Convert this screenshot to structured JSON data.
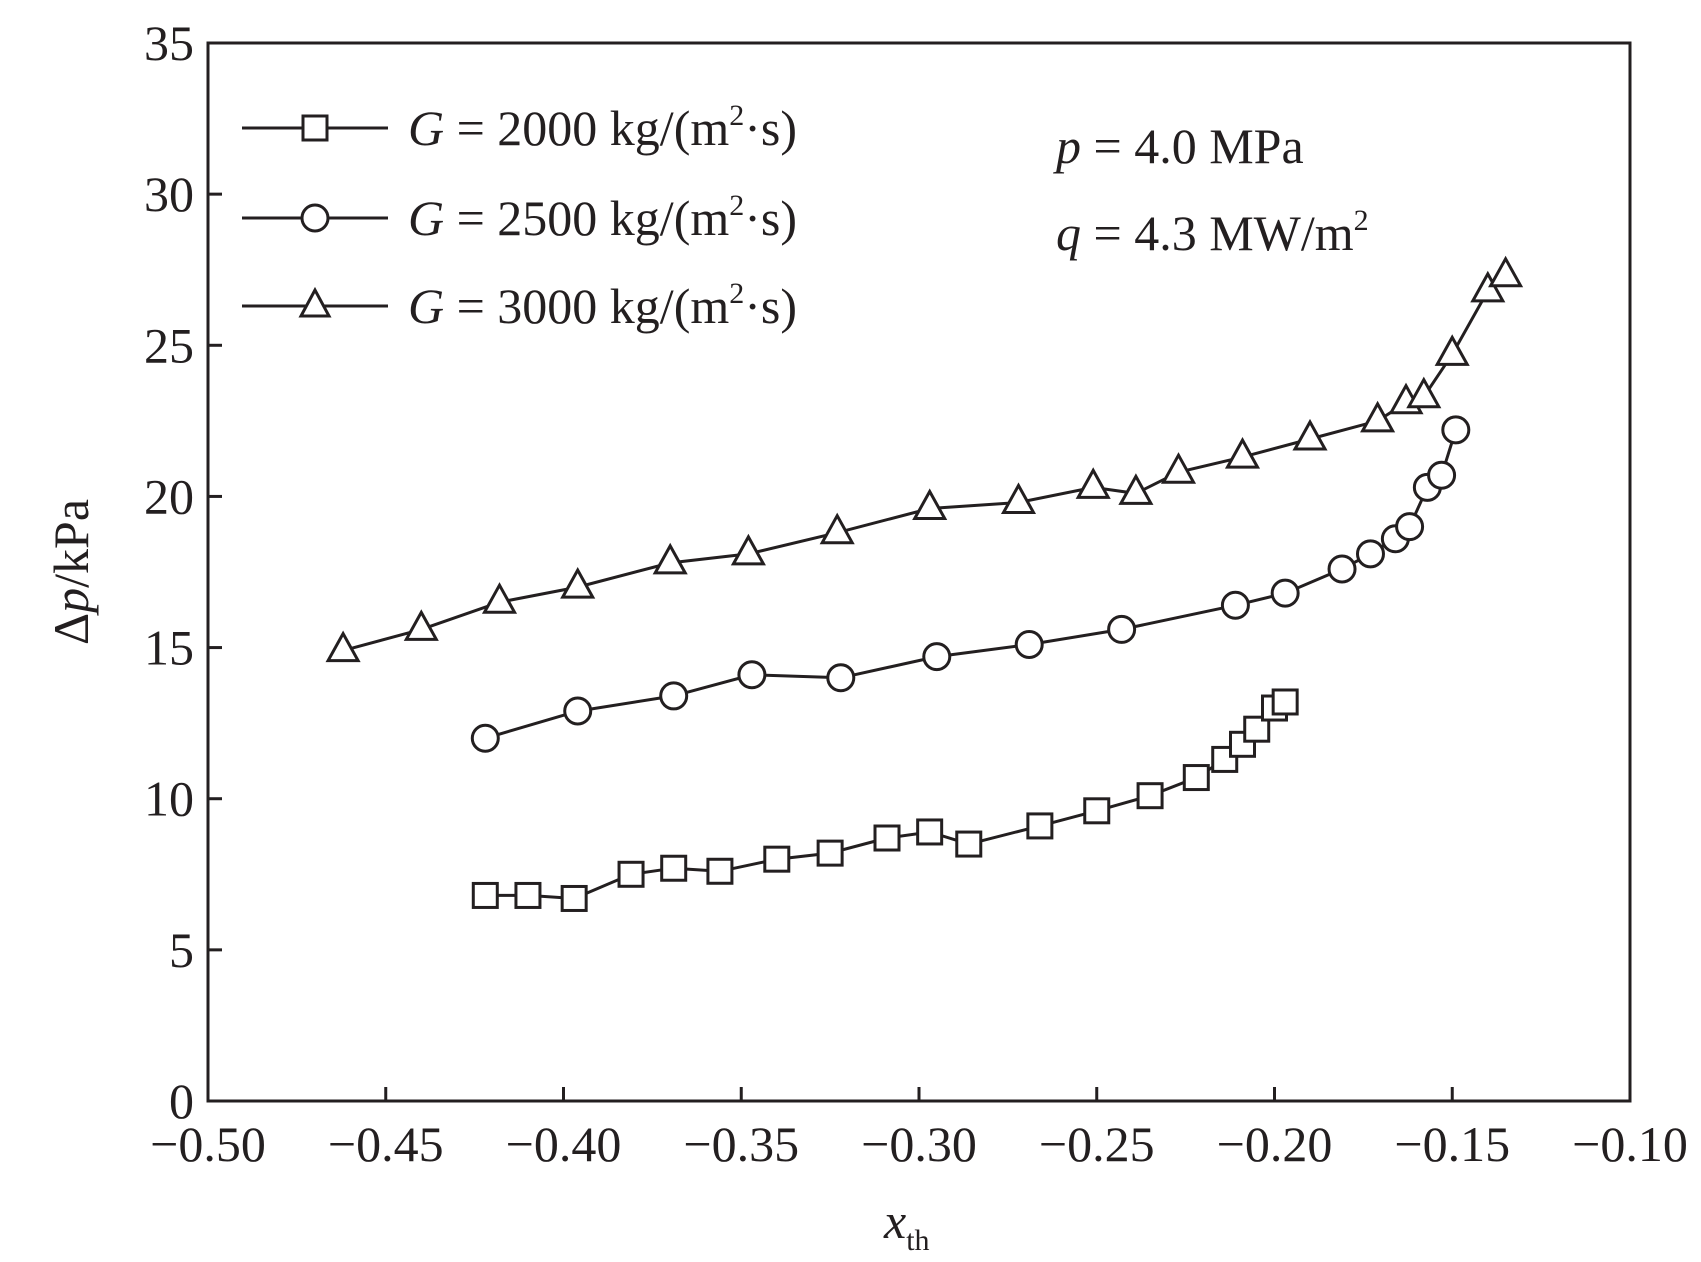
{
  "chart_data": {
    "type": "line",
    "xlabel": "x",
    "xlabel_sub": "th",
    "ylabel": "Δp/kPa",
    "ylabel_parts": [
      "Δ",
      "p",
      "/kPa"
    ],
    "xlim": [
      -0.5,
      -0.1
    ],
    "ylim": [
      0,
      35
    ],
    "xticks": [
      -0.5,
      -0.45,
      -0.4,
      -0.35,
      -0.3,
      -0.25,
      -0.2,
      -0.15,
      -0.1
    ],
    "xtick_labels": [
      "−0.50",
      "−0.45",
      "−0.40",
      "−0.35",
      "−0.30",
      "−0.25",
      "−0.20",
      "−0.15",
      "−0.10"
    ],
    "yticks": [
      0,
      5,
      10,
      15,
      20,
      25,
      30,
      35
    ],
    "ytick_labels": [
      "0",
      "5",
      "10",
      "15",
      "20",
      "25",
      "30",
      "35"
    ],
    "grid": false,
    "legend_position": "top-left",
    "series": [
      {
        "name": "G = 2000 kg/(m²·s)",
        "label_var": "G",
        "label_value": " = 2000 kg/(m",
        "label_sup": "2",
        "label_end": "·s)",
        "marker": "square",
        "x": [
          -0.422,
          -0.41,
          -0.397,
          -0.381,
          -0.369,
          -0.356,
          -0.34,
          -0.325,
          -0.309,
          -0.297,
          -0.286,
          -0.266,
          -0.25,
          -0.235,
          -0.222,
          -0.214,
          -0.209,
          -0.205,
          -0.2,
          -0.197
        ],
        "y": [
          6.8,
          6.8,
          6.7,
          7.5,
          7.7,
          7.6,
          8.0,
          8.2,
          8.7,
          8.9,
          8.5,
          9.1,
          9.6,
          10.1,
          10.7,
          11.3,
          11.8,
          12.3,
          13.0,
          13.2
        ]
      },
      {
        "name": "G = 2500 kg/(m²·s)",
        "label_var": "G",
        "label_value": " = 2500 kg/(m",
        "label_sup": "2",
        "label_end": "·s)",
        "marker": "circle",
        "x": [
          -0.422,
          -0.396,
          -0.369,
          -0.347,
          -0.322,
          -0.295,
          -0.269,
          -0.243,
          -0.211,
          -0.197,
          -0.181,
          -0.173,
          -0.166,
          -0.162,
          -0.157,
          -0.153,
          -0.149
        ],
        "y": [
          12.0,
          12.9,
          13.4,
          14.1,
          14.0,
          14.7,
          15.1,
          15.6,
          16.4,
          16.8,
          17.6,
          18.1,
          18.6,
          19.0,
          20.3,
          20.7,
          22.2
        ]
      },
      {
        "name": "G = 3000 kg/(m²·s)",
        "label_var": "G",
        "label_value": " = 3000 kg/(m",
        "label_sup": "2",
        "label_end": "·s)",
        "marker": "triangle",
        "x": [
          -0.462,
          -0.44,
          -0.418,
          -0.396,
          -0.37,
          -0.348,
          -0.323,
          -0.297,
          -0.272,
          -0.251,
          -0.239,
          -0.227,
          -0.209,
          -0.19,
          -0.171,
          -0.163,
          -0.158,
          -0.15,
          -0.14,
          -0.135
        ],
        "y": [
          14.9,
          15.6,
          16.5,
          17.0,
          17.8,
          18.1,
          18.8,
          19.6,
          19.8,
          20.3,
          20.1,
          20.8,
          21.3,
          21.9,
          22.5,
          23.1,
          23.3,
          24.7,
          26.8,
          27.3
        ]
      }
    ],
    "annotations": {
      "pressure_var": "p",
      "pressure_value": " = 4.0 MPa",
      "flux_var": "q",
      "flux_value": " = 4.3 MW/m",
      "flux_sup": "2"
    }
  }
}
